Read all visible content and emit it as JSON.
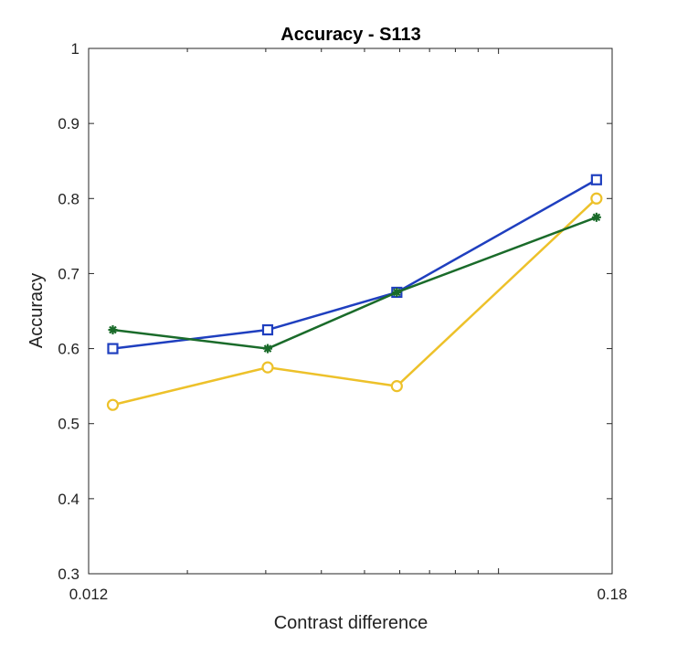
{
  "chart_data": {
    "type": "line",
    "title": "Accuracy - S113",
    "xlabel": "Contrast difference",
    "ylabel": "Accuracy",
    "xscale": "log",
    "xlim": [
      0.012,
      0.18
    ],
    "ylim": [
      0.3,
      1
    ],
    "xticks": [
      0.012,
      0.18
    ],
    "xtick_labels": [
      "0.012",
      "0.18"
    ],
    "yticks": [
      0.3,
      0.4,
      0.5,
      0.6,
      0.7,
      0.8,
      0.9,
      1
    ],
    "ytick_labels": [
      "0.3",
      "0.4",
      "0.5",
      "0.6",
      "0.7",
      "0.8",
      "0.9",
      "1"
    ],
    "grid": false,
    "x": [
      0.0136,
      0.0303,
      0.0591,
      0.166
    ],
    "series": [
      {
        "values": [
          0.525,
          0.575,
          0.55,
          0.8
        ],
        "color": "#EDC12A",
        "marker": "circle"
      },
      {
        "values": [
          0.6,
          0.625,
          0.675,
          0.825
        ],
        "color": "#1F3FBF",
        "marker": "square"
      },
      {
        "values": [
          0.625,
          0.6,
          0.675,
          0.775
        ],
        "color": "#1A6B2A",
        "marker": "star"
      }
    ]
  }
}
